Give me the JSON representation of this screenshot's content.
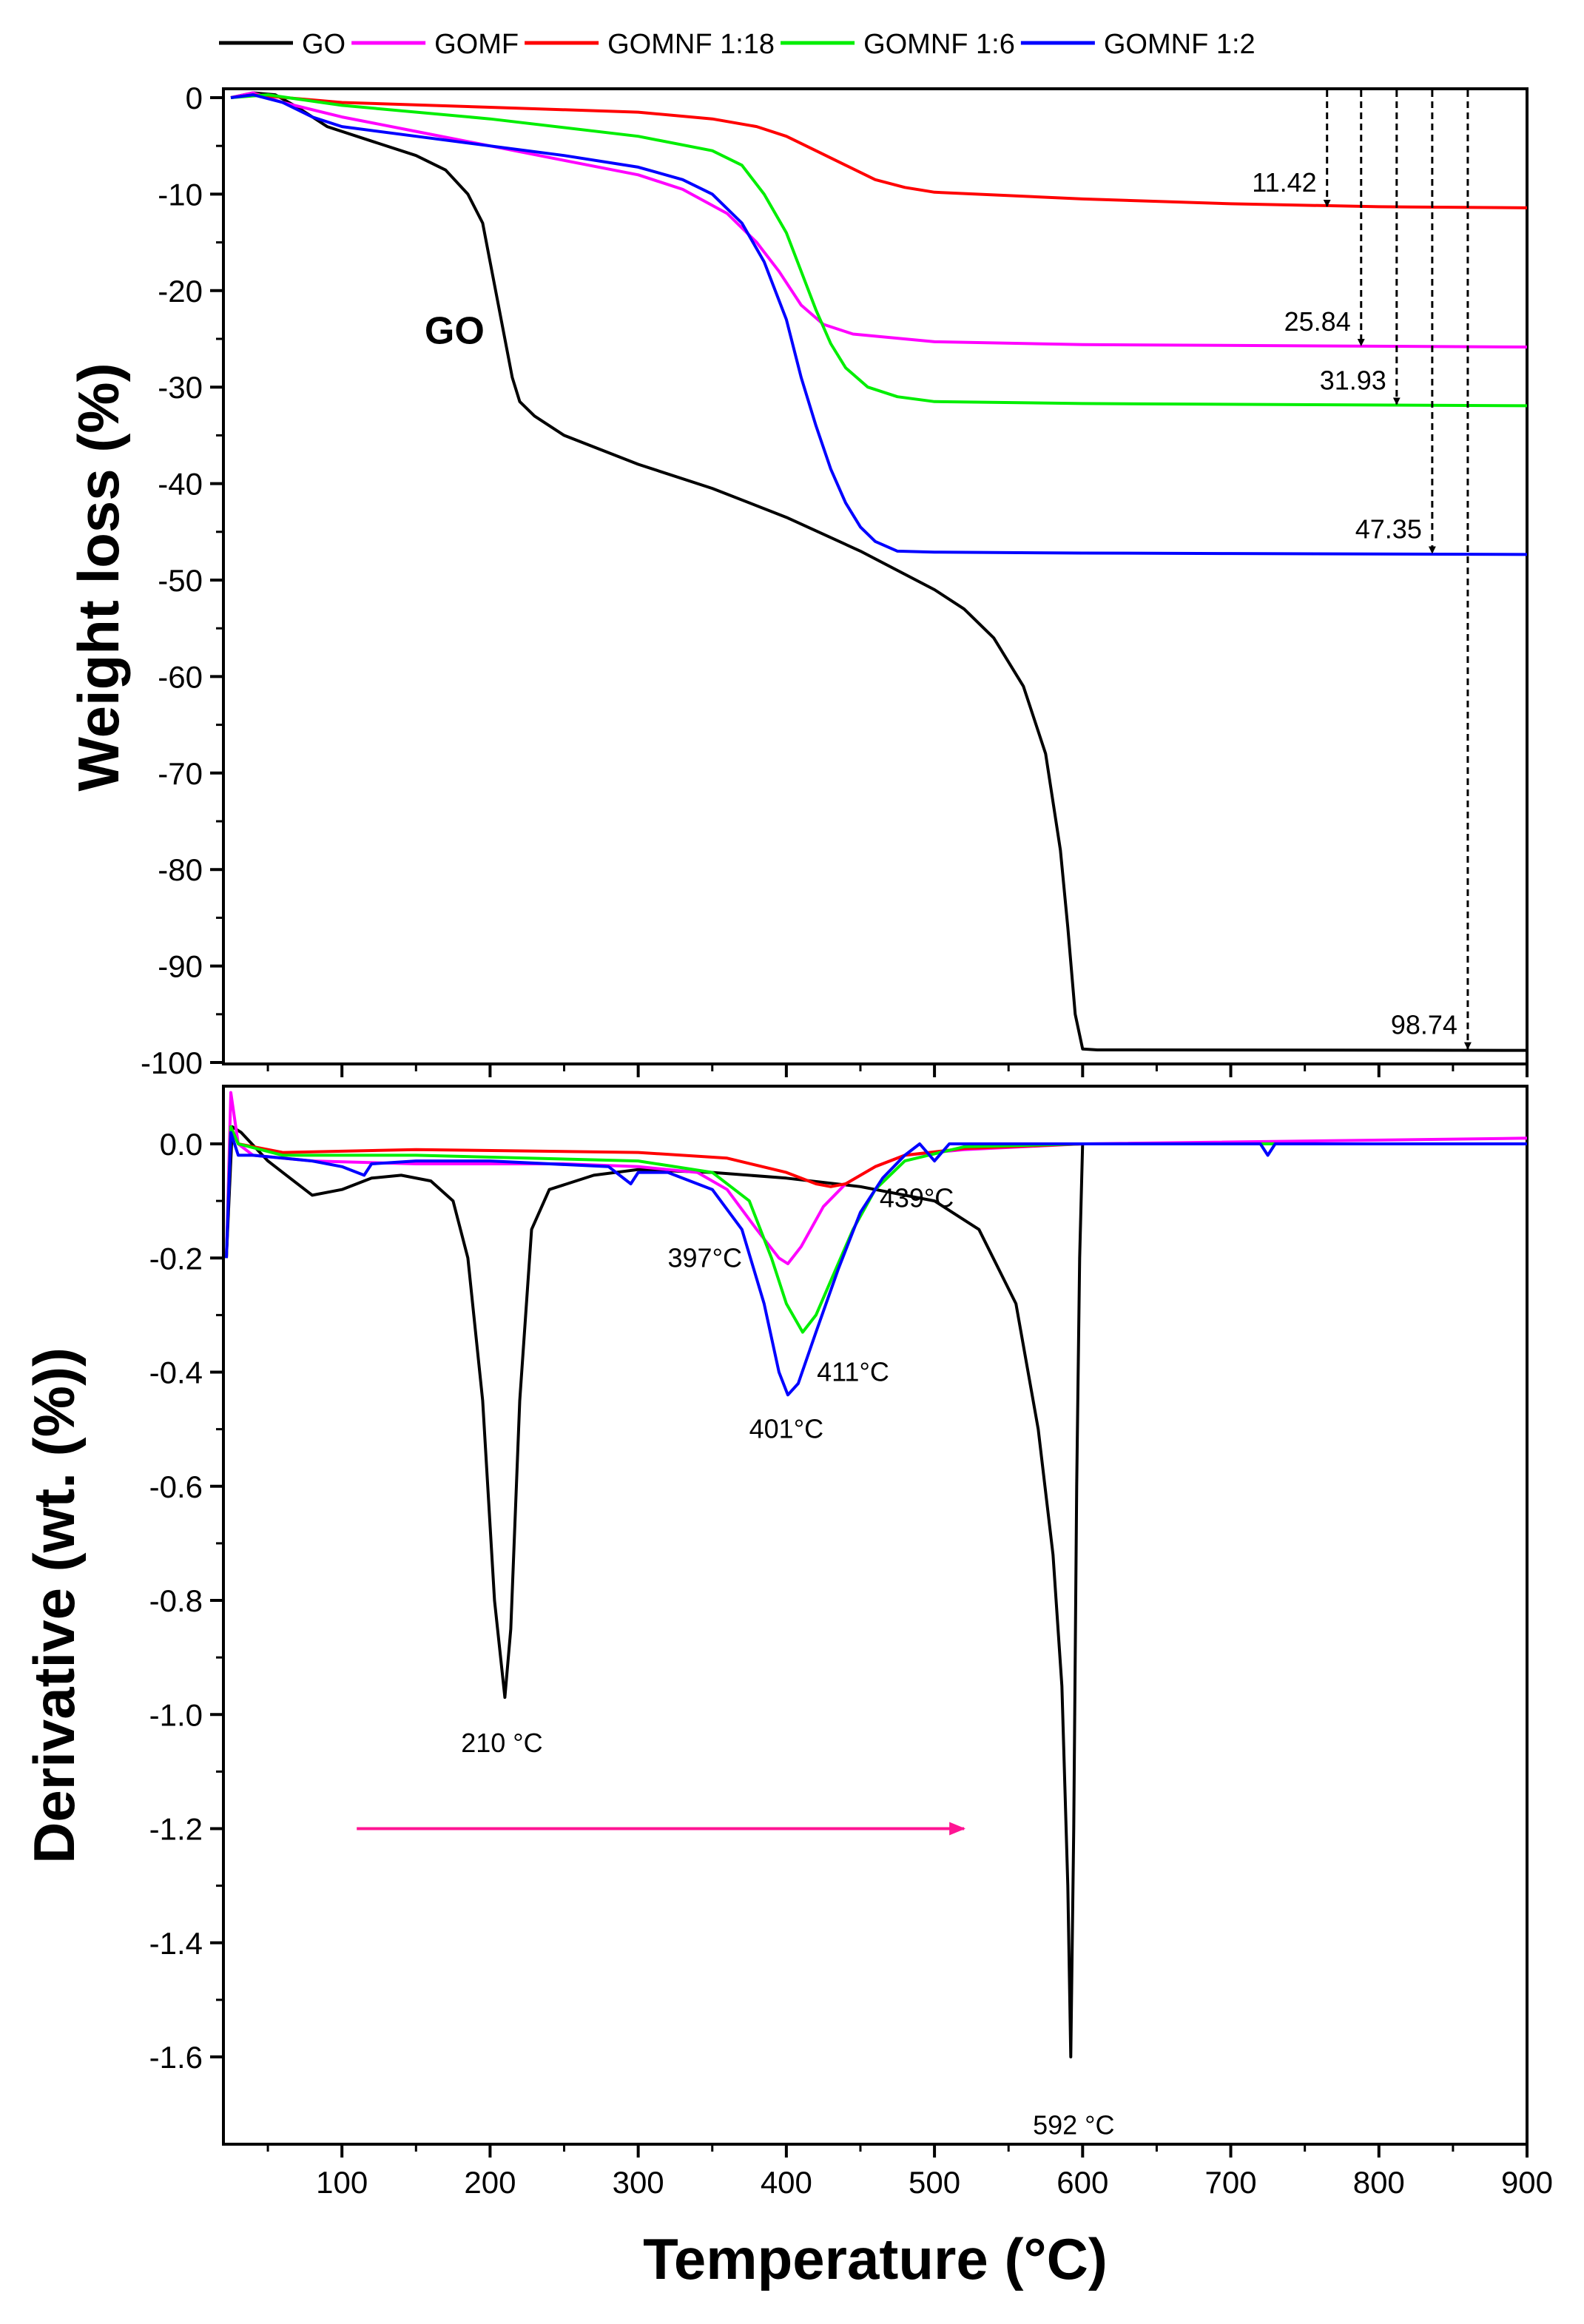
{
  "chart_data": [
    {
      "panel": "top",
      "type": "line",
      "title": "",
      "xlabel": "Temperature (°C)",
      "ylabel": "Weight loss (%)",
      "xlim": [
        20,
        900
      ],
      "ylim": [
        -100,
        0
      ],
      "x_ticks": [
        "100",
        "200",
        "300",
        "400",
        "500",
        "600",
        "700",
        "800",
        "900"
      ],
      "y_ticks": [
        "0",
        "-10",
        "-20",
        "-30",
        "-40",
        "-50",
        "-60",
        "-70",
        "-80",
        "-90",
        "-100"
      ],
      "legend": {
        "position": "top",
        "entries": [
          "GO",
          "GOMF",
          "GOMNF 1:18",
          "GOMNF 1:6",
          "GOMNF 1:2"
        ]
      },
      "series": [
        {
          "name": "GO",
          "color": "#000000",
          "points": [
            [
              25,
              0
            ],
            [
              40,
              0.5
            ],
            [
              55,
              0.3
            ],
            [
              70,
              -1
            ],
            [
              90,
              -3
            ],
            [
              120,
              -4.5
            ],
            [
              150,
              -6
            ],
            [
              170,
              -7.5
            ],
            [
              185,
              -10
            ],
            [
              195,
              -13
            ],
            [
              200,
              -17
            ],
            [
              205,
              -21
            ],
            [
              210,
              -25
            ],
            [
              215,
              -29
            ],
            [
              220,
              -31.5
            ],
            [
              230,
              -33
            ],
            [
              250,
              -35
            ],
            [
              300,
              -38
            ],
            [
              350,
              -40.5
            ],
            [
              400,
              -43.5
            ],
            [
              450,
              -47
            ],
            [
              500,
              -51
            ],
            [
              520,
              -53
            ],
            [
              540,
              -56
            ],
            [
              560,
              -61
            ],
            [
              575,
              -68
            ],
            [
              585,
              -78
            ],
            [
              590,
              -86
            ],
            [
              595,
              -95
            ],
            [
              600,
              -98.6
            ],
            [
              610,
              -98.7
            ],
            [
              900,
              -98.74
            ]
          ]
        },
        {
          "name": "GOMF",
          "color": "#ff00ff",
          "points": [
            [
              25,
              0
            ],
            [
              40,
              0.5
            ],
            [
              60,
              -0.5
            ],
            [
              100,
              -2
            ],
            [
              150,
              -3.5
            ],
            [
              200,
              -5
            ],
            [
              250,
              -6.5
            ],
            [
              300,
              -8
            ],
            [
              330,
              -9.5
            ],
            [
              360,
              -12
            ],
            [
              380,
              -15
            ],
            [
              395,
              -18
            ],
            [
              410,
              -21.5
            ],
            [
              425,
              -23.5
            ],
            [
              445,
              -24.5
            ],
            [
              500,
              -25.3
            ],
            [
              600,
              -25.6
            ],
            [
              900,
              -25.84
            ]
          ]
        },
        {
          "name": "GOMNF 1:18",
          "color": "#ff0000",
          "points": [
            [
              25,
              0
            ],
            [
              40,
              0.3
            ],
            [
              100,
              -0.5
            ],
            [
              200,
              -1
            ],
            [
              300,
              -1.5
            ],
            [
              350,
              -2.2
            ],
            [
              380,
              -3
            ],
            [
              400,
              -4
            ],
            [
              420,
              -5.5
            ],
            [
              440,
              -7
            ],
            [
              460,
              -8.5
            ],
            [
              480,
              -9.3
            ],
            [
              500,
              -9.8
            ],
            [
              600,
              -10.5
            ],
            [
              700,
              -11
            ],
            [
              800,
              -11.3
            ],
            [
              900,
              -11.42
            ]
          ]
        },
        {
          "name": "GOMNF 1:6",
          "color": "#00ee00",
          "points": [
            [
              25,
              0
            ],
            [
              50,
              0.3
            ],
            [
              100,
              -0.8
            ],
            [
              200,
              -2.2
            ],
            [
              300,
              -4
            ],
            [
              350,
              -5.5
            ],
            [
              370,
              -7
            ],
            [
              385,
              -10
            ],
            [
              400,
              -14
            ],
            [
              410,
              -18
            ],
            [
              420,
              -22
            ],
            [
              430,
              -25.5
            ],
            [
              440,
              -28
            ],
            [
              455,
              -30
            ],
            [
              475,
              -31
            ],
            [
              500,
              -31.5
            ],
            [
              600,
              -31.7
            ],
            [
              900,
              -31.93
            ]
          ]
        },
        {
          "name": "GOMNF 1:2",
          "color": "#0000ff",
          "points": [
            [
              25,
              0
            ],
            [
              40,
              0.3
            ],
            [
              60,
              -0.5
            ],
            [
              80,
              -2
            ],
            [
              100,
              -3
            ],
            [
              150,
              -4
            ],
            [
              200,
              -5
            ],
            [
              250,
              -6
            ],
            [
              300,
              -7.2
            ],
            [
              330,
              -8.5
            ],
            [
              350,
              -10
            ],
            [
              370,
              -13
            ],
            [
              385,
              -17
            ],
            [
              400,
              -23
            ],
            [
              410,
              -29
            ],
            [
              420,
              -34
            ],
            [
              430,
              -38.5
            ],
            [
              440,
              -42
            ],
            [
              450,
              -44.5
            ],
            [
              460,
              -46
            ],
            [
              475,
              -47
            ],
            [
              500,
              -47.1
            ],
            [
              600,
              -47.2
            ],
            [
              700,
              -47.25
            ],
            [
              900,
              -47.35
            ]
          ]
        }
      ],
      "markers": [
        {
          "label": "11.42",
          "x": 765,
          "y": -11.42
        },
        {
          "label": "25.84",
          "x": 788,
          "y": -25.84
        },
        {
          "label": "31.93",
          "x": 812,
          "y": -31.93
        },
        {
          "label": "47.35",
          "x": 836,
          "y": -47.35
        },
        {
          "label": "98.74",
          "x": 860,
          "y": -98.74
        }
      ],
      "annotations": [
        {
          "label": "GO",
          "x": 176,
          "y": -25.5
        }
      ]
    },
    {
      "panel": "bottom",
      "type": "line",
      "title": "",
      "xlabel": "Temperature (°C)",
      "ylabel": "Derivative (wt. (%))",
      "xlim": [
        20,
        900
      ],
      "ylim": [
        -1.75,
        0.1
      ],
      "x_ticks": [
        "100",
        "200",
        "300",
        "400",
        "500",
        "600",
        "700",
        "800",
        "900"
      ],
      "y_ticks": [
        "0.0",
        "-0.2",
        "-0.4",
        "-0.6",
        "-0.8",
        "-1.0",
        "-1.2",
        "-1.4",
        "-1.6"
      ],
      "series": [
        {
          "name": "GO",
          "color": "#000000",
          "points": [
            [
              22,
              -0.2
            ],
            [
              26,
              0.03
            ],
            [
              32,
              0.02
            ],
            [
              50,
              -0.03
            ],
            [
              65,
              -0.06
            ],
            [
              80,
              -0.09
            ],
            [
              100,
              -0.08
            ],
            [
              120,
              -0.06
            ],
            [
              140,
              -0.055
            ],
            [
              160,
              -0.065
            ],
            [
              175,
              -0.1
            ],
            [
              185,
              -0.2
            ],
            [
              195,
              -0.45
            ],
            [
              203,
              -0.8
            ],
            [
              210,
              -0.97
            ],
            [
              214,
              -0.85
            ],
            [
              220,
              -0.45
            ],
            [
              228,
              -0.15
            ],
            [
              240,
              -0.08
            ],
            [
              270,
              -0.055
            ],
            [
              300,
              -0.045
            ],
            [
              350,
              -0.05
            ],
            [
              400,
              -0.06
            ],
            [
              450,
              -0.075
            ],
            [
              500,
              -0.1
            ],
            [
              530,
              -0.15
            ],
            [
              555,
              -0.28
            ],
            [
              570,
              -0.5
            ],
            [
              580,
              -0.72
            ],
            [
              586,
              -0.95
            ],
            [
              590,
              -1.3
            ],
            [
              592,
              -1.6
            ],
            [
              594,
              -1.2
            ],
            [
              596,
              -0.6
            ],
            [
              598,
              -0.2
            ],
            [
              600,
              0.0
            ],
            [
              650,
              0.0
            ],
            [
              900,
              0.0
            ]
          ]
        },
        {
          "name": "GOMF",
          "color": "#ff00ff",
          "points": [
            [
              22,
              -0.2
            ],
            [
              25,
              0.09
            ],
            [
              30,
              0.0
            ],
            [
              40,
              -0.02
            ],
            [
              80,
              -0.03
            ],
            [
              150,
              -0.035
            ],
            [
              250,
              -0.035
            ],
            [
              300,
              -0.04
            ],
            [
              340,
              -0.05
            ],
            [
              360,
              -0.08
            ],
            [
              380,
              -0.15
            ],
            [
              395,
              -0.2
            ],
            [
              401,
              -0.21
            ],
            [
              410,
              -0.18
            ],
            [
              425,
              -0.11
            ],
            [
              440,
              -0.07
            ],
            [
              460,
              -0.04
            ],
            [
              480,
              -0.02
            ],
            [
              520,
              -0.01
            ],
            [
              600,
              0.0
            ],
            [
              900,
              0.01
            ]
          ]
        },
        {
          "name": "GOMNF 1:18",
          "color": "#ff0000",
          "points": [
            [
              22,
              -0.2
            ],
            [
              25,
              0.03
            ],
            [
              30,
              0.0
            ],
            [
              60,
              -0.015
            ],
            [
              150,
              -0.01
            ],
            [
              300,
              -0.015
            ],
            [
              360,
              -0.025
            ],
            [
              400,
              -0.05
            ],
            [
              420,
              -0.07
            ],
            [
              430,
              -0.075
            ],
            [
              440,
              -0.07
            ],
            [
              460,
              -0.04
            ],
            [
              480,
              -0.02
            ],
            [
              520,
              -0.008
            ],
            [
              600,
              0.0
            ],
            [
              900,
              0.0
            ]
          ]
        },
        {
          "name": "GOMNF 1:6",
          "color": "#00ee00",
          "points": [
            [
              22,
              -0.2
            ],
            [
              25,
              0.03
            ],
            [
              30,
              0.0
            ],
            [
              60,
              -0.02
            ],
            [
              150,
              -0.02
            ],
            [
              300,
              -0.03
            ],
            [
              350,
              -0.05
            ],
            [
              375,
              -0.1
            ],
            [
              390,
              -0.2
            ],
            [
              400,
              -0.28
            ],
            [
              411,
              -0.33
            ],
            [
              420,
              -0.3
            ],
            [
              430,
              -0.24
            ],
            [
              445,
              -0.15
            ],
            [
              460,
              -0.08
            ],
            [
              480,
              -0.03
            ],
            [
              520,
              -0.005
            ],
            [
              600,
              0.0
            ],
            [
              900,
              0.0
            ]
          ]
        },
        {
          "name": "GOMNF 1:2",
          "color": "#0000ff",
          "points": [
            [
              22,
              -0.2
            ],
            [
              25,
              0.02
            ],
            [
              30,
              -0.02
            ],
            [
              40,
              -0.02
            ],
            [
              80,
              -0.03
            ],
            [
              100,
              -0.04
            ],
            [
              115,
              -0.055
            ],
            [
              120,
              -0.035
            ],
            [
              150,
              -0.03
            ],
            [
              200,
              -0.03
            ],
            [
              280,
              -0.04
            ],
            [
              295,
              -0.07
            ],
            [
              300,
              -0.05
            ],
            [
              320,
              -0.05
            ],
            [
              350,
              -0.08
            ],
            [
              370,
              -0.15
            ],
            [
              385,
              -0.28
            ],
            [
              395,
              -0.4
            ],
            [
              401,
              -0.44
            ],
            [
              408,
              -0.42
            ],
            [
              420,
              -0.33
            ],
            [
              435,
              -0.22
            ],
            [
              450,
              -0.12
            ],
            [
              465,
              -0.06
            ],
            [
              480,
              -0.02
            ],
            [
              490,
              0.0
            ],
            [
              500,
              -0.03
            ],
            [
              510,
              0.0
            ],
            [
              520,
              0.0
            ],
            [
              600,
              0.0
            ],
            [
              720,
              0.0
            ],
            [
              725,
              -0.02
            ],
            [
              730,
              0.0
            ],
            [
              900,
              0.0
            ]
          ]
        }
      ],
      "annotations": [
        {
          "label": "210 °C",
          "x": 208,
          "y": -1.05
        },
        {
          "label": "397°C",
          "x": 345,
          "y": -0.2
        },
        {
          "label": "401°C",
          "x": 400,
          "y": -0.5
        },
        {
          "label": "411°C",
          "x": 445,
          "y": -0.4
        },
        {
          "label": "439°C",
          "x": 488,
          "y": -0.095
        },
        {
          "label": "592 °C",
          "x": 594,
          "y": -1.72
        }
      ],
      "arrow": {
        "from": [
          110,
          -1.2
        ],
        "to": [
          520,
          -1.2
        ],
        "color": "#ff1493"
      }
    }
  ]
}
